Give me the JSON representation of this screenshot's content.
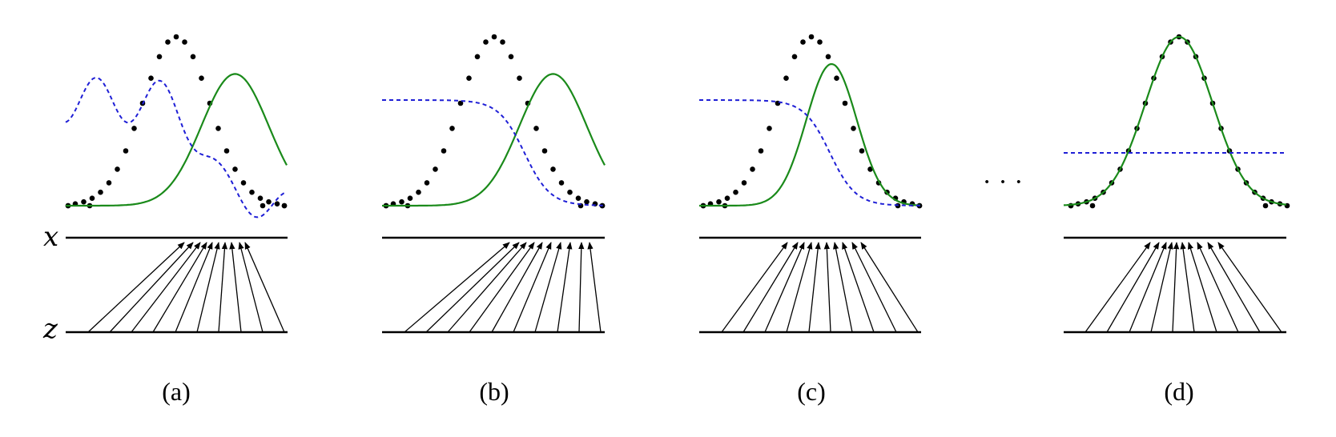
{
  "axes": {
    "x_label": "x",
    "z_label": "z"
  },
  "ellipsis": "· · ·",
  "colors": {
    "data_distribution": "#000000",
    "generative_distribution": "#1a8a1a",
    "discriminator": "#1f1fd6",
    "mapping_arrows": "#000000"
  },
  "panels": [
    {
      "label": "(a)",
      "generator_mean": 1.75,
      "generator_sigma": 1.0,
      "discriminator": "noisy"
    },
    {
      "label": "(b)",
      "generator_mean": 1.75,
      "generator_sigma": 1.0,
      "discriminator": "sigmoid"
    },
    {
      "label": "(c)",
      "generator_mean": 0.6,
      "generator_sigma": 0.75,
      "discriminator": "sigmoid"
    },
    {
      "label": "(d)",
      "generator_mean": 0.0,
      "generator_sigma": 0.9,
      "discriminator": "flat"
    }
  ]
}
